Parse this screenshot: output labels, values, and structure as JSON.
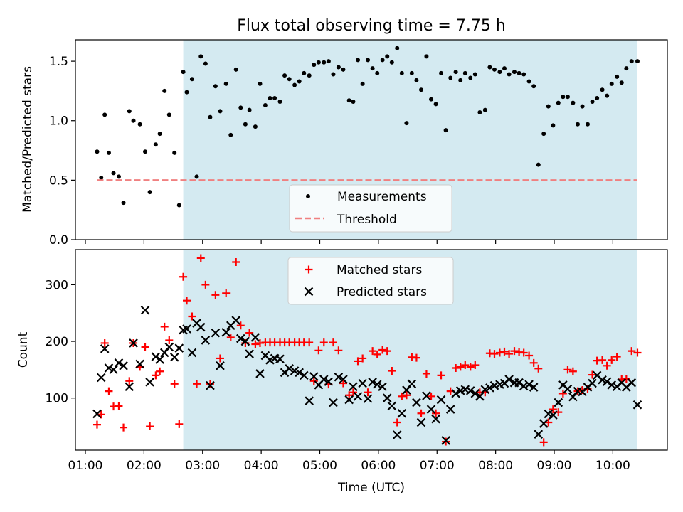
{
  "chart_data": [
    {
      "type": "scatter",
      "title": "Flux total observing time = 7.75 h",
      "xlabel": "",
      "ylabel": "Matched/Predicted stars",
      "xlim_hours": [
        0.83,
        10.93
      ],
      "ylim": [
        0,
        1.68
      ],
      "yticks": [
        0.0,
        0.5,
        1.0,
        1.5
      ],
      "ytick_labels": [
        "0.0",
        "0.5",
        "1.0",
        "1.5"
      ],
      "shaded_interval_hours": [
        2.67,
        10.42
      ],
      "shade_color": "#d4eaf1",
      "legend_position": "lower center",
      "series": [
        {
          "name": "Measurements",
          "marker": "dot",
          "color": "#000000",
          "x": [
            1.2,
            1.27,
            1.33,
            1.4,
            1.48,
            1.57,
            1.65,
            1.75,
            1.82,
            1.93,
            2.02,
            2.1,
            2.2,
            2.27,
            2.35,
            2.43,
            2.52,
            2.6,
            2.67,
            2.73,
            2.82,
            2.9,
            2.97,
            3.05,
            3.13,
            3.22,
            3.3,
            3.4,
            3.48,
            3.57,
            3.65,
            3.73,
            3.8,
            3.9,
            3.98,
            4.07,
            4.15,
            4.23,
            4.32,
            4.4,
            4.48,
            4.57,
            4.65,
            4.73,
            4.82,
            4.9,
            4.98,
            5.07,
            5.15,
            5.23,
            5.32,
            5.4,
            5.5,
            5.57,
            5.65,
            5.73,
            5.82,
            5.9,
            5.98,
            6.07,
            6.15,
            6.23,
            6.32,
            6.4,
            6.48,
            6.57,
            6.65,
            6.73,
            6.82,
            6.9,
            6.98,
            7.07,
            7.15,
            7.23,
            7.32,
            7.4,
            7.48,
            7.57,
            7.65,
            7.73,
            7.82,
            7.9,
            7.98,
            8.07,
            8.15,
            8.23,
            8.32,
            8.4,
            8.48,
            8.57,
            8.65,
            8.73,
            8.82,
            8.9,
            8.98,
            9.07,
            9.15,
            9.23,
            9.32,
            9.4,
            9.48,
            9.57,
            9.65,
            9.73,
            9.82,
            9.9,
            9.98,
            10.07,
            10.15,
            10.23,
            10.32,
            10.42
          ],
          "y": [
            0.74,
            0.52,
            1.05,
            0.73,
            0.56,
            0.53,
            0.31,
            1.08,
            1.0,
            0.97,
            0.74,
            0.4,
            0.8,
            0.89,
            1.25,
            1.05,
            0.73,
            0.29,
            1.41,
            1.24,
            1.35,
            0.53,
            1.54,
            1.48,
            1.03,
            1.29,
            1.08,
            1.31,
            0.88,
            1.43,
            1.11,
            0.97,
            1.09,
            0.95,
            1.31,
            1.13,
            1.19,
            1.19,
            1.16,
            1.38,
            1.35,
            1.3,
            1.33,
            1.4,
            1.38,
            1.47,
            1.49,
            1.49,
            1.5,
            1.39,
            1.45,
            1.43,
            1.17,
            1.16,
            1.51,
            1.31,
            1.51,
            1.44,
            1.4,
            1.51,
            1.54,
            1.49,
            1.61,
            1.4,
            0.98,
            1.4,
            1.34,
            1.26,
            1.54,
            1.18,
            1.14,
            1.4,
            0.92,
            1.36,
            1.41,
            1.34,
            1.4,
            1.36,
            1.39,
            1.07,
            1.09,
            1.45,
            1.43,
            1.41,
            1.44,
            1.39,
            1.41,
            1.4,
            1.39,
            1.33,
            1.29,
            0.63,
            0.89,
            1.12,
            0.96,
            1.15,
            1.2,
            1.2,
            1.15,
            0.97,
            1.12,
            0.97,
            1.16,
            1.19,
            1.26,
            1.21,
            1.31,
            1.37,
            1.32,
            1.44,
            1.5,
            1.5
          ]
        },
        {
          "name": "Threshold",
          "style": "dashed",
          "color": "#f08080",
          "x": [
            1.2,
            10.42
          ],
          "y": [
            0.5,
            0.5
          ]
        }
      ]
    },
    {
      "type": "scatter",
      "title": "",
      "xlabel": "Time (UTC)",
      "ylabel": "Count",
      "xlim_hours": [
        0.83,
        10.93
      ],
      "ylim": [
        8,
        362
      ],
      "yticks": [
        100,
        200,
        300
      ],
      "ytick_labels": [
        "100",
        "200",
        "300"
      ],
      "xticks_hours": [
        1,
        2,
        3,
        4,
        5,
        6,
        7,
        8,
        9,
        10
      ],
      "xtick_labels": [
        "01:00",
        "02:00",
        "03:00",
        "04:00",
        "05:00",
        "06:00",
        "07:00",
        "08:00",
        "09:00",
        "10:00"
      ],
      "shaded_interval_hours": [
        2.67,
        10.42
      ],
      "shade_color": "#d4eaf1",
      "legend_position": "upper center",
      "series": [
        {
          "name": "Matched stars",
          "marker": "plus",
          "color": "#ff0000",
          "x": [
            1.2,
            1.27,
            1.33,
            1.4,
            1.48,
            1.57,
            1.65,
            1.75,
            1.82,
            1.93,
            2.02,
            2.1,
            2.2,
            2.27,
            2.35,
            2.43,
            2.52,
            2.6,
            2.67,
            2.73,
            2.82,
            2.9,
            2.97,
            3.05,
            3.13,
            3.22,
            3.3,
            3.4,
            3.48,
            3.57,
            3.65,
            3.73,
            3.8,
            3.9,
            3.98,
            4.07,
            4.15,
            4.23,
            4.32,
            4.4,
            4.48,
            4.57,
            4.65,
            4.73,
            4.82,
            4.9,
            4.98,
            5.07,
            5.15,
            5.23,
            5.32,
            5.4,
            5.5,
            5.57,
            5.65,
            5.73,
            5.82,
            5.9,
            5.98,
            6.07,
            6.15,
            6.23,
            6.32,
            6.4,
            6.48,
            6.57,
            6.65,
            6.73,
            6.82,
            6.9,
            6.98,
            7.07,
            7.15,
            7.23,
            7.32,
            7.4,
            7.48,
            7.57,
            7.65,
            7.73,
            7.82,
            7.9,
            7.98,
            8.07,
            8.15,
            8.23,
            8.32,
            8.4,
            8.48,
            8.57,
            8.65,
            8.73,
            8.82,
            8.9,
            8.98,
            9.07,
            9.15,
            9.23,
            9.32,
            9.4,
            9.48,
            9.57,
            9.65,
            9.73,
            9.82,
            9.9,
            9.98,
            10.07,
            10.15,
            10.23,
            10.32,
            10.42
          ],
          "y": [
            53,
            71,
            197,
            112,
            85,
            86,
            48,
            130,
            197,
            155,
            190,
            50,
            140,
            147,
            226,
            202,
            125,
            54,
            314,
            272,
            244,
            125,
            347,
            300,
            125,
            282,
            170,
            285,
            207,
            340,
            228,
            197,
            215,
            195,
            197,
            198,
            198,
            198,
            198,
            198,
            198,
            198,
            198,
            198,
            198,
            130,
            184,
            198,
            124,
            198,
            184,
            126,
            105,
            110,
            165,
            170,
            110,
            183,
            177,
            185,
            183,
            148,
            57,
            103,
            105,
            172,
            171,
            73,
            143,
            103,
            73,
            140,
            23,
            112,
            153,
            155,
            158,
            155,
            158,
            110,
            110,
            179,
            178,
            180,
            182,
            178,
            183,
            181,
            180,
            175,
            162,
            152,
            22,
            57,
            80,
            75,
            108,
            150,
            147,
            112,
            114,
            116,
            141,
            166,
            167,
            157,
            167,
            173,
            133,
            134,
            183,
            180
          ]
        },
        {
          "name": "Predicted stars",
          "marker": "x",
          "color": "#000000",
          "x": [
            1.2,
            1.27,
            1.33,
            1.4,
            1.48,
            1.57,
            1.65,
            1.75,
            1.82,
            1.93,
            2.02,
            2.1,
            2.2,
            2.27,
            2.35,
            2.43,
            2.52,
            2.6,
            2.67,
            2.73,
            2.82,
            2.9,
            2.97,
            3.05,
            3.13,
            3.22,
            3.3,
            3.4,
            3.48,
            3.57,
            3.65,
            3.73,
            3.8,
            3.9,
            3.98,
            4.07,
            4.15,
            4.23,
            4.32,
            4.4,
            4.48,
            4.57,
            4.65,
            4.73,
            4.82,
            4.9,
            4.98,
            5.07,
            5.15,
            5.23,
            5.32,
            5.4,
            5.5,
            5.57,
            5.65,
            5.73,
            5.82,
            5.9,
            5.98,
            6.07,
            6.15,
            6.23,
            6.32,
            6.4,
            6.48,
            6.57,
            6.65,
            6.73,
            6.82,
            6.9,
            6.98,
            7.07,
            7.15,
            7.23,
            7.32,
            7.4,
            7.48,
            7.57,
            7.65,
            7.73,
            7.82,
            7.9,
            7.98,
            8.07,
            8.15,
            8.23,
            8.32,
            8.4,
            8.48,
            8.57,
            8.65,
            8.73,
            8.82,
            8.9,
            8.98,
            9.07,
            9.15,
            9.23,
            9.32,
            9.4,
            9.48,
            9.57,
            9.65,
            9.73,
            9.82,
            9.9,
            9.98,
            10.07,
            10.15,
            10.23,
            10.32,
            10.42
          ],
          "y": [
            72,
            136,
            187,
            153,
            150,
            162,
            157,
            120,
            197,
            160,
            255,
            128,
            173,
            168,
            180,
            190,
            172,
            188,
            220,
            222,
            180,
            232,
            225,
            202,
            122,
            215,
            157,
            216,
            228,
            237,
            205,
            200,
            178,
            207,
            143,
            175,
            167,
            170,
            169,
            145,
            152,
            148,
            145,
            140,
            95,
            138,
            123,
            133,
            129,
            92,
            137,
            133,
            97,
            120,
            103,
            126,
            99,
            128,
            124,
            120,
            100,
            86,
            35,
            73,
            114,
            125,
            92,
            57,
            104,
            80,
            63,
            97,
            25,
            80,
            108,
            113,
            115,
            113,
            108,
            103,
            115,
            118,
            122,
            124,
            126,
            133,
            127,
            127,
            121,
            124,
            119,
            36,
            55,
            72,
            70,
            92,
            123,
            116,
            102,
            112,
            111,
            119,
            126,
            140,
            132,
            129,
            123,
            120,
            127,
            119,
            127,
            88
          ]
        }
      ]
    }
  ]
}
